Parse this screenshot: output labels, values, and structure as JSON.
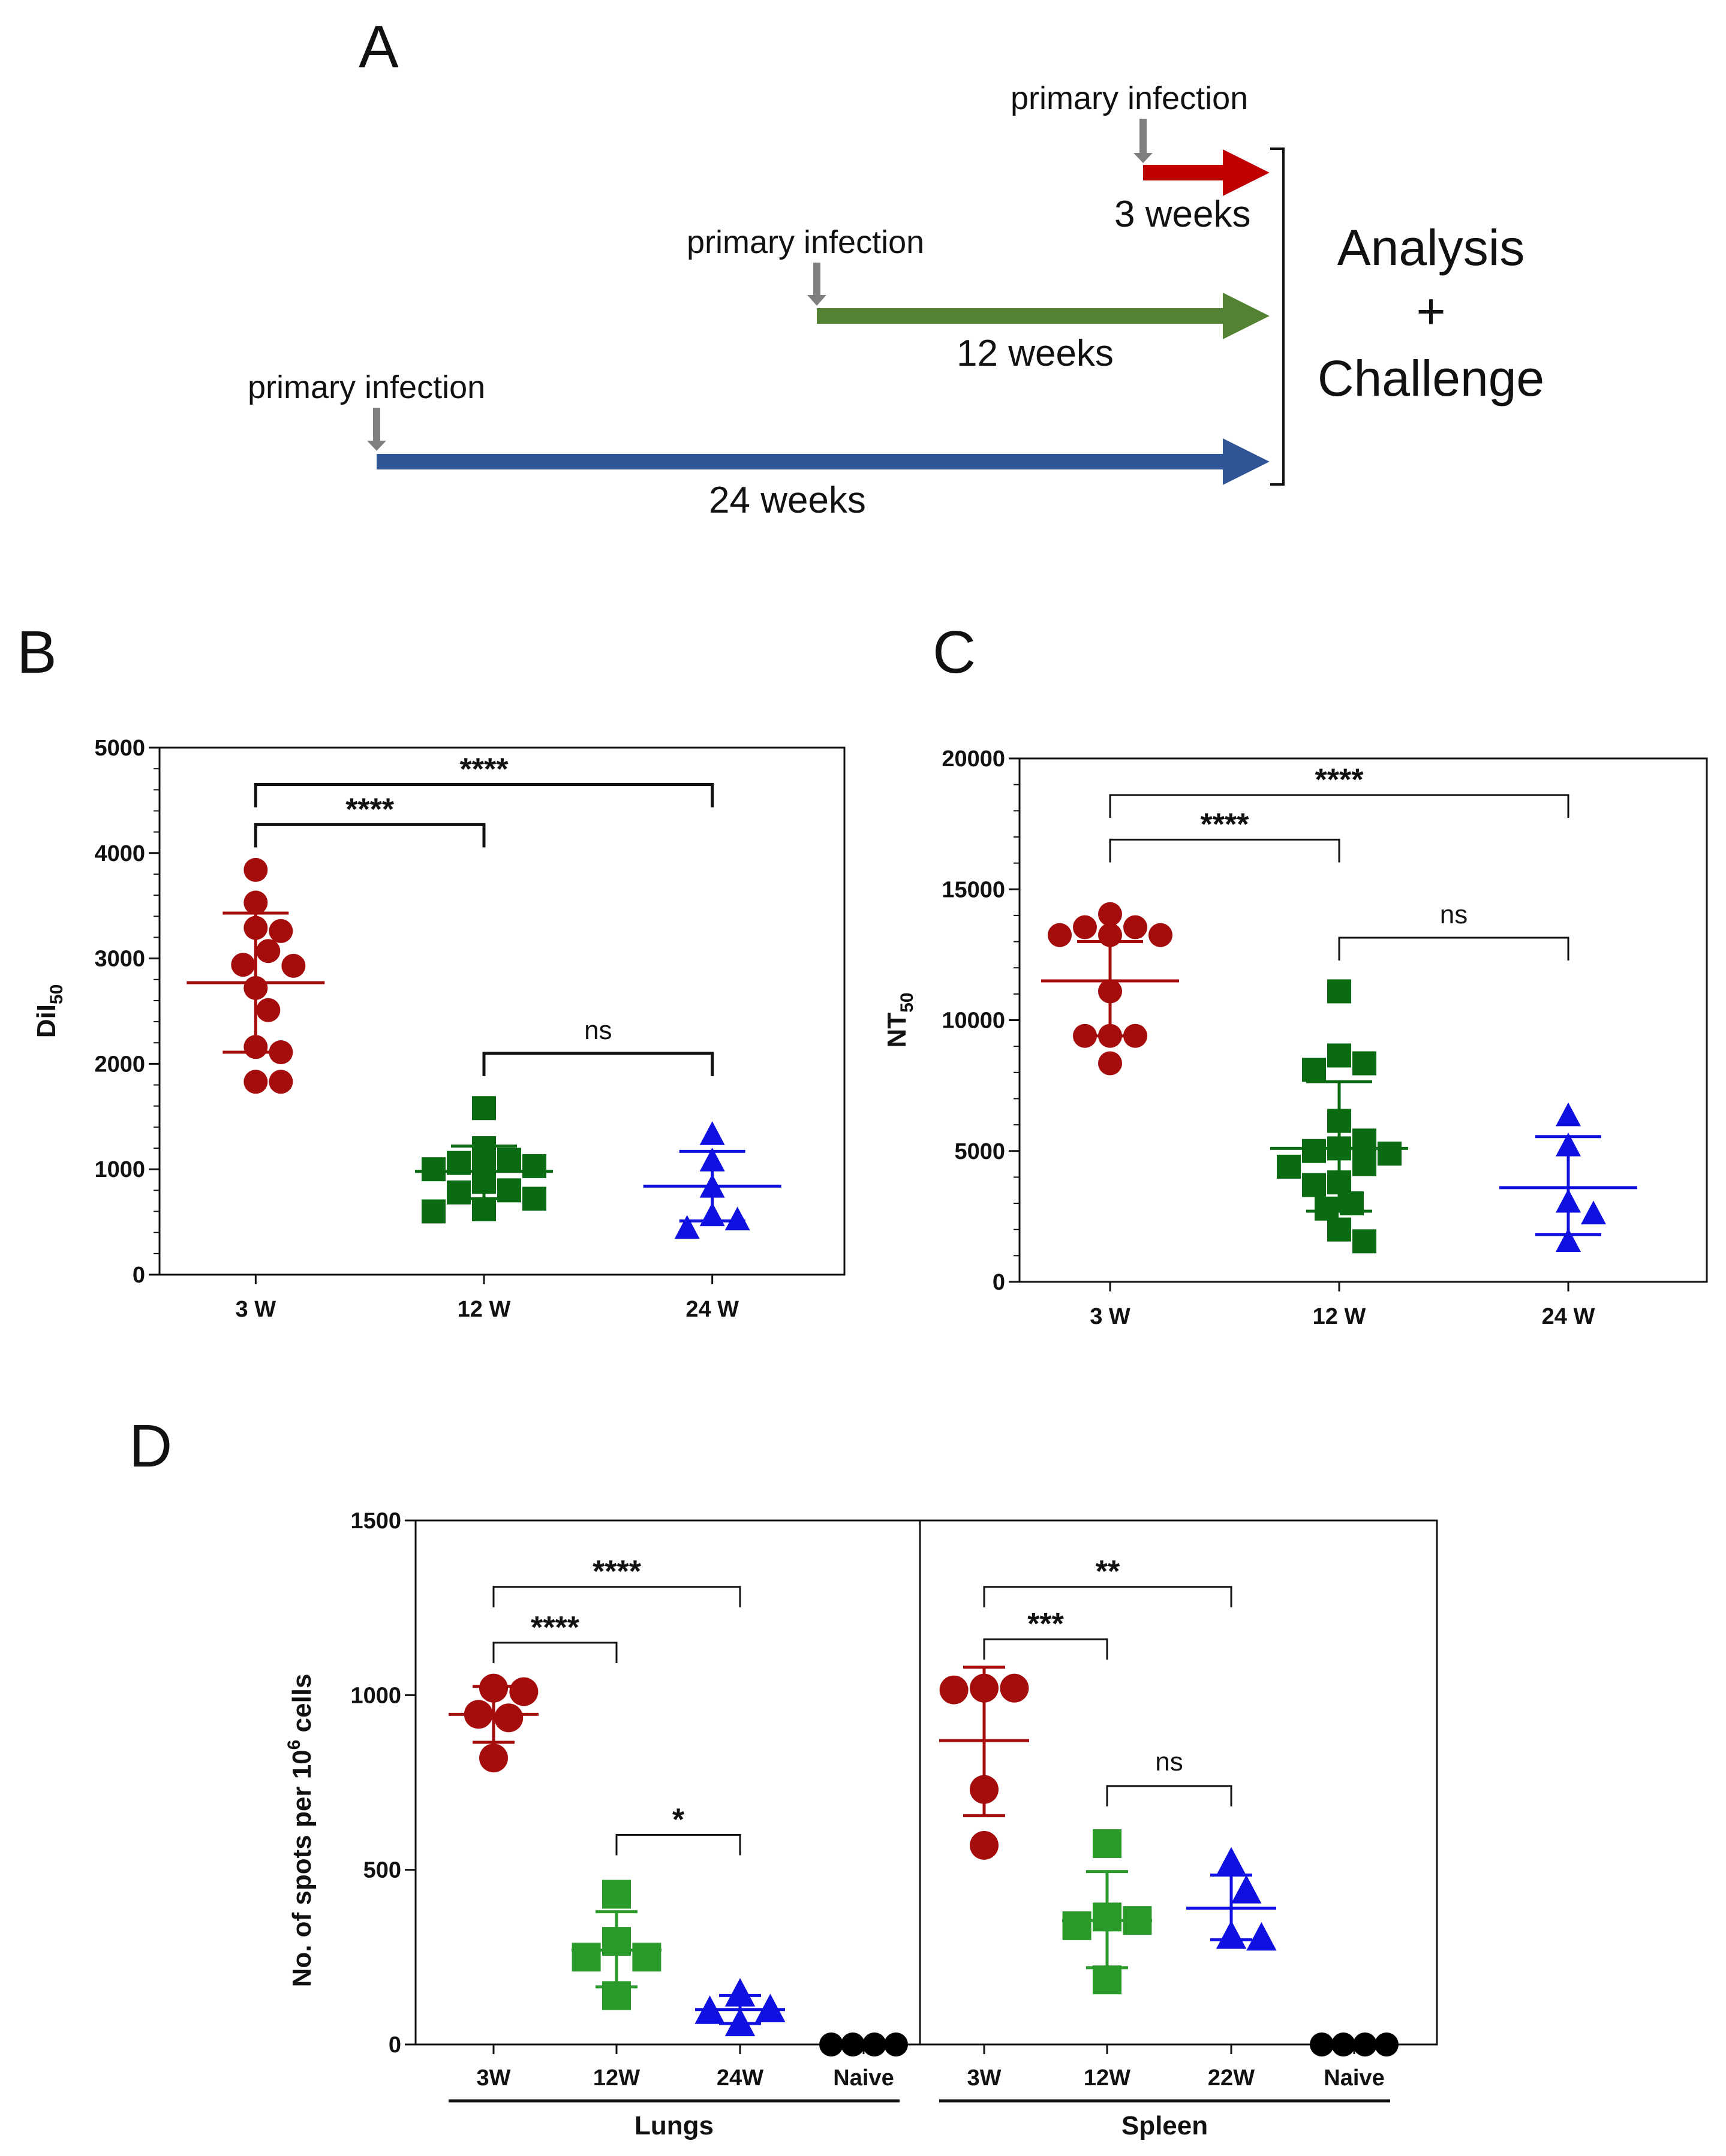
{
  "panel_labels": {
    "a": "A",
    "b": "B",
    "c": "C",
    "d": "D"
  },
  "timeline": {
    "events": [
      {
        "label": "primary infection",
        "duration": "3 weeks",
        "color": "#c00000"
      },
      {
        "label": "primary infection",
        "duration": "12 weeks",
        "color": "#548235"
      },
      {
        "label": "primary infection",
        "duration": "24 weeks",
        "color": "#2f5597"
      }
    ],
    "outcome": [
      "Analysis",
      "+",
      "Challenge"
    ]
  },
  "colors": {
    "c3w": "#a50d0d",
    "c12w_dark": "#0a6b12",
    "c24w": "#1010e0",
    "c12w_light": "#2a9a2a",
    "naive": "#000000"
  },
  "chart_data": [
    {
      "type": "scatter",
      "panel": "B",
      "ylabel": "DiI",
      "ylabel_sub": "50",
      "categories": [
        "3 W",
        "12 W",
        "24 W"
      ],
      "ylim": [
        0,
        5000
      ],
      "yticks": [
        "0",
        "1000",
        "2000",
        "3000",
        "4000",
        "5000"
      ],
      "series": [
        {
          "category": "3 W",
          "marker": "circle",
          "mean": 2770,
          "sd_low": 2110,
          "sd_high": 3430,
          "points": [
            3840,
            3530,
            3290,
            3260,
            3070,
            2940,
            2930,
            2720,
            2510,
            2160,
            2110,
            1830,
            1830
          ]
        },
        {
          "category": "12 W",
          "marker": "square",
          "mean": 980,
          "sd_low": 720,
          "sd_high": 1220,
          "points": [
            1580,
            1200,
            1090,
            1060,
            1030,
            1000,
            980,
            960,
            930,
            880,
            800,
            780,
            720,
            620,
            600
          ]
        },
        {
          "category": "24 W",
          "marker": "triangle",
          "mean": 840,
          "sd_low": 510,
          "sd_high": 1170,
          "points": [
            1330,
            1080,
            830,
            560,
            520,
            440
          ]
        }
      ],
      "comparisons": [
        {
          "from": 0,
          "to": 2,
          "y": 4650,
          "label": "****"
        },
        {
          "from": 0,
          "to": 1,
          "y": 4270,
          "label": "****"
        },
        {
          "from": 1,
          "to": 2,
          "y": 2100,
          "label": "ns"
        }
      ]
    },
    {
      "type": "scatter",
      "panel": "C",
      "ylabel": "NT",
      "ylabel_sub": "50",
      "categories": [
        "3 W",
        "12 W",
        "24 W"
      ],
      "ylim": [
        0,
        20000
      ],
      "yticks": [
        "0",
        "5000",
        "10000",
        "15000",
        "20000"
      ],
      "series": [
        {
          "category": "3 W",
          "marker": "circle",
          "mean": 11500,
          "sd_low": 9400,
          "sd_high": 13000,
          "points": [
            14050,
            13550,
            13550,
            13250,
            13250,
            13250,
            11100,
            9400,
            9400,
            9400,
            8350
          ]
        },
        {
          "category": "12 W",
          "marker": "square",
          "mean": 5100,
          "sd_low": 2700,
          "sd_high": 7650,
          "points": [
            11100,
            8650,
            8350,
            8100,
            6150,
            5400,
            5100,
            5000,
            4900,
            4500,
            4400,
            3800,
            3700,
            3000,
            2800,
            2000,
            1550
          ]
        },
        {
          "category": "24 W",
          "marker": "triangle",
          "mean": 3600,
          "sd_low": 1800,
          "sd_high": 5550,
          "points": [
            6350,
            5200,
            3050,
            2600,
            1550
          ]
        }
      ],
      "comparisons": [
        {
          "from": 0,
          "to": 2,
          "y": 18600,
          "label": "****"
        },
        {
          "from": 0,
          "to": 1,
          "y": 16900,
          "label": "****"
        },
        {
          "from": 1,
          "to": 2,
          "y": 13150,
          "label": "ns"
        }
      ]
    },
    {
      "type": "scatter",
      "panel": "D",
      "ylabel": "No. of spots per 10",
      "ylabel_sup": "6",
      "ylabel_tail": " cells",
      "ylim": [
        0,
        1500
      ],
      "yticks": [
        "0",
        "500",
        "1000",
        "1500"
      ],
      "groups": [
        {
          "name": "Lungs",
          "categories": [
            "3W",
            "12W",
            "24W",
            "Naive"
          ],
          "series": [
            {
              "category": "3W",
              "marker": "circle",
              "color_key": "c3w",
              "mean": 945,
              "sd_low": 865,
              "sd_high": 1025,
              "points": [
                1020,
                1010,
                945,
                935,
                820
              ]
            },
            {
              "category": "12W",
              "marker": "square",
              "color_key": "c12w_light",
              "mean": 270,
              "sd_low": 165,
              "sd_high": 380,
              "points": [
                430,
                295,
                250,
                250,
                140
              ]
            },
            {
              "category": "24W",
              "marker": "triangle",
              "color_key": "c24w",
              "mean": 100,
              "sd_low": 60,
              "sd_high": 140,
              "points": [
                145,
                100,
                95,
                60
              ]
            },
            {
              "category": "Naive",
              "marker": "circle",
              "color_key": "naive",
              "mean": 0,
              "sd_low": 0,
              "sd_high": 0,
              "points": [
                0,
                0,
                0,
                0
              ]
            }
          ],
          "comparisons": [
            {
              "from": 0,
              "to": 2,
              "y": 1310,
              "label": "****"
            },
            {
              "from": 0,
              "to": 1,
              "y": 1150,
              "label": "****"
            },
            {
              "from": 1,
              "to": 2,
              "y": 600,
              "label": "*"
            }
          ]
        },
        {
          "name": "Spleen",
          "categories": [
            "3W",
            "12W",
            "22W",
            "Naive"
          ],
          "series": [
            {
              "category": "3W",
              "marker": "circle",
              "color_key": "c3w",
              "mean": 870,
              "sd_low": 655,
              "sd_high": 1080,
              "points": [
                1020,
                1020,
                1015,
                730,
                570
              ]
            },
            {
              "category": "12W",
              "marker": "square",
              "color_key": "c12w_light",
              "mean": 355,
              "sd_low": 220,
              "sd_high": 495,
              "points": [
                575,
                365,
                355,
                340,
                185
              ]
            },
            {
              "category": "22W",
              "marker": "triangle",
              "color_key": "c24w",
              "mean": 390,
              "sd_low": 300,
              "sd_high": 485,
              "points": [
                520,
                440,
                310,
                305
              ]
            },
            {
              "category": "Naive",
              "marker": "circle",
              "color_key": "naive",
              "mean": 0,
              "sd_low": 0,
              "sd_high": 0,
              "points": [
                0,
                0,
                0,
                0
              ]
            }
          ],
          "comparisons": [
            {
              "from": 0,
              "to": 2,
              "y": 1310,
              "label": "**"
            },
            {
              "from": 0,
              "to": 1,
              "y": 1160,
              "label": "***"
            },
            {
              "from": 1,
              "to": 2,
              "y": 740,
              "label": "ns"
            }
          ]
        }
      ]
    }
  ]
}
